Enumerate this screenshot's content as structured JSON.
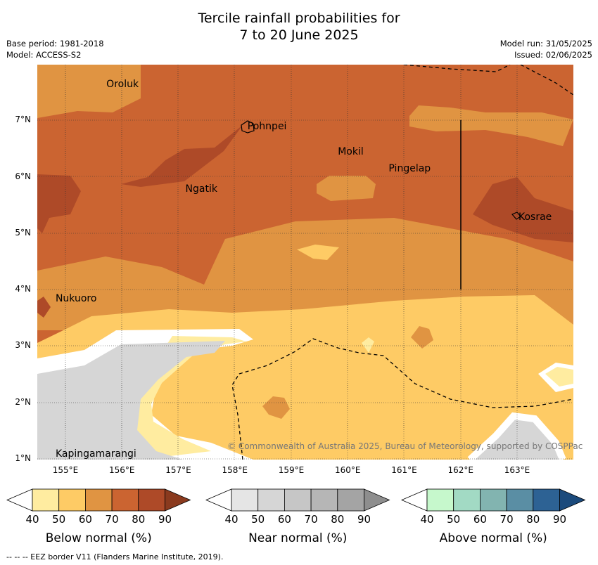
{
  "title_line1": "Tercile rainfall probabilities for",
  "title_line2": "7 to 20 June 2025",
  "meta": {
    "base_period": "Base period: 1981-2018",
    "model": "Model: ACCESS-S2",
    "model_run": "Model run: 31/05/2025",
    "issued": "Issued: 02/06/2025"
  },
  "axes": {
    "lat_labels": [
      "7°N",
      "6°N",
      "5°N",
      "4°N",
      "3°N",
      "2°N",
      "1°N"
    ],
    "lon_labels": [
      "155°E",
      "156°E",
      "157°E",
      "158°E",
      "159°E",
      "160°E",
      "161°E",
      "162°E",
      "163°E"
    ]
  },
  "places": [
    {
      "name": "Oroluk",
      "lon": 155.7,
      "lat": 7.65
    },
    {
      "name": "Pohnpei",
      "lon": 158.2,
      "lat": 6.9
    },
    {
      "name": "Mokil",
      "lon": 159.8,
      "lat": 6.45
    },
    {
      "name": "Pingelap",
      "lon": 160.7,
      "lat": 6.15
    },
    {
      "name": "Ngatik",
      "lon": 157.1,
      "lat": 5.8
    },
    {
      "name": "Kosrae",
      "lon": 163.0,
      "lat": 5.3
    },
    {
      "name": "Nukuoro",
      "lon": 154.8,
      "lat": 3.85
    },
    {
      "name": "Kapingamarangi",
      "lon": 154.8,
      "lat": 1.1
    }
  ],
  "copyright": "© Commonwealth of Australia 2025, Bureau of Meteorology, supported by COSPPac",
  "legends": [
    {
      "title": "Below normal (%)",
      "ticks": [
        "40",
        "50",
        "60",
        "70",
        "80",
        "90"
      ],
      "colors": [
        "#ffffff",
        "#ffeca0",
        "#fecb65",
        "#e09442",
        "#cb6431",
        "#ae4a28",
        "#8a3a1e"
      ]
    },
    {
      "title": "Near normal (%)",
      "ticks": [
        "40",
        "50",
        "60",
        "70",
        "80",
        "90"
      ],
      "colors": [
        "#ffffff",
        "#e5e5e5",
        "#d6d6d6",
        "#c6c6c6",
        "#b6b6b6",
        "#a4a4a4",
        "#8e8e8e"
      ]
    },
    {
      "title": "Above normal (%)",
      "ticks": [
        "40",
        "50",
        "60",
        "70",
        "80",
        "90"
      ],
      "colors": [
        "#ffffff",
        "#c6f8cc",
        "#a2dac4",
        "#82b4b0",
        "#5a8ea4",
        "#2d6294",
        "#1b4a7c"
      ]
    }
  ],
  "footer": "--  --  -- EEZ border V11 (Flanders Marine Institute, 2019)."
}
